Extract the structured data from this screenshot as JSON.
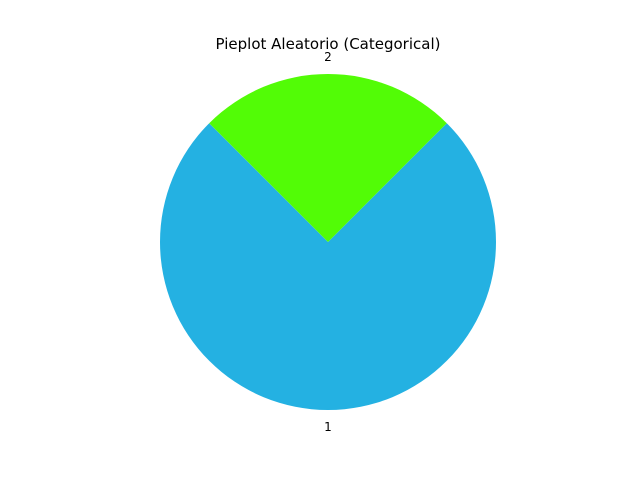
{
  "chart_data": {
    "type": "pie",
    "title": "Pieplot Aleatorio (Categorical)",
    "slices": [
      {
        "label": "1",
        "value": 75,
        "color": "#24b1e2"
      },
      {
        "label": "2",
        "value": 25,
        "color": "#52fc06"
      }
    ],
    "start_angle_deg": 135,
    "direction": "counterclockwise",
    "legend": "none"
  }
}
